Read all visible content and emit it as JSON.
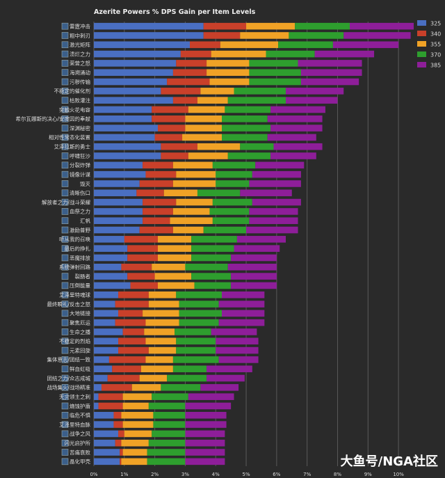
{
  "watermark": "大鱼号/NGA社区",
  "chart_data": {
    "type": "bar",
    "orientation": "horizontal",
    "stacked": true,
    "title": "Azerite Powers % DPS Gain per Item Levels",
    "xlabel": "",
    "ylabel": "",
    "xlim": [
      0,
      10.5
    ],
    "x_ticks": [
      "0%",
      "1%",
      "2%",
      "3%",
      "4%",
      "5%",
      "6%",
      "7%",
      "8%",
      "9%",
      "10%"
    ],
    "grid": true,
    "legend_position": "right",
    "colors": [
      "#4a6fc2",
      "#c9402a",
      "#f0a226",
      "#2e9e2e",
      "#8e1e99"
    ],
    "categories": [
      "雷霆冲击",
      "粗中刺刃",
      "激光矩阵",
      "溃烂之力",
      "荣营之怒",
      "海溯涌动",
      "污秽传输",
      "不稳定的催化剂",
      "枯败灌注",
      "突触火花电容",
      "希尔瓦娜斯的决心/安度因的奉献",
      "深渊秘密",
      "相对性常态化装置",
      "艾泽拉斯的勇士",
      "呼啸狂沙",
      "分裂炸弹",
      "镜像计谋",
      "毁灭",
      "清晰伤口",
      "解放者之力/战斗荣耀",
      "血祭之力",
      "汇帆",
      "激励普野",
      "听从我的召唤",
      "最后的挣扎",
      "恶魔排放",
      "系统弹射回路",
      "裂肠者",
      "压倒能量",
      "艾泽里特魂球",
      "最终瞬礼/反击之怒",
      "大地链接",
      "聚焦厄运",
      "生命之播",
      "不稳定的烈焰",
      "元素回旋",
      "集体意志/团结一致",
      "鲜血虹吸",
      "团结之力/众志成城",
      "战场集火/战场精准",
      "天灾领主之刺",
      "熵蚀护盾",
      "临危不惧",
      "艾泽里特血脉",
      "战争之风",
      "闪光启护所",
      "苦痛衰败",
      "晶化甲壳"
    ],
    "series": [
      {
        "name": "325",
        "values": [
          3.6,
          3.6,
          3.15,
          2.85,
          2.7,
          2.6,
          2.4,
          2.2,
          2.6,
          1.9,
          1.9,
          2.1,
          2.0,
          2.2,
          2.2,
          1.6,
          1.7,
          1.5,
          1.4,
          1.6,
          1.6,
          1.6,
          1.5,
          1.0,
          1.1,
          1.1,
          0.9,
          1.1,
          1.2,
          0.8,
          0.7,
          0.8,
          0.7,
          0.95,
          0.8,
          0.8,
          0.5,
          0.6,
          0.45,
          0.25,
          0.15,
          0.15,
          0.65,
          0.65,
          0.8,
          0.7,
          0.85,
          0.85
        ]
      },
      {
        "name": "340",
        "values": [
          1.4,
          1.2,
          1.0,
          1.0,
          1.0,
          1.1,
          1.4,
          1.3,
          0.8,
          1.2,
          1.1,
          0.9,
          0.9,
          1.2,
          0.9,
          1.0,
          1.0,
          1.1,
          0.9,
          1.1,
          1.0,
          0.9,
          1.1,
          1.1,
          1.0,
          1.0,
          1.0,
          0.9,
          0.9,
          1.0,
          1.1,
          0.8,
          1.0,
          0.7,
          0.9,
          1.0,
          1.2,
          0.95,
          1.05,
          1.0,
          0.8,
          0.8,
          0.25,
          0.3,
          0.2,
          0.2,
          0.1,
          0.05
        ]
      },
      {
        "name": "355",
        "values": [
          1.6,
          1.6,
          1.9,
          1.8,
          1.4,
          1.4,
          1.3,
          1.1,
          1.0,
          1.2,
          1.2,
          1.2,
          1.3,
          1.4,
          1.3,
          1.3,
          1.3,
          1.4,
          1.1,
          1.2,
          1.2,
          1.4,
          1.0,
          1.1,
          1.1,
          1.1,
          1.1,
          1.2,
          1.2,
          0.9,
          1.0,
          1.2,
          1.1,
          1.0,
          1.0,
          0.9,
          0.9,
          1.05,
          0.9,
          0.95,
          0.95,
          0.85,
          1.05,
          1.0,
          0.9,
          0.9,
          0.8,
          0.85
        ]
      },
      {
        "name": "370",
        "values": [
          1.8,
          1.8,
          1.8,
          1.6,
          1.6,
          1.7,
          1.7,
          1.7,
          1.9,
          1.5,
          1.5,
          1.6,
          1.5,
          1.1,
          1.4,
          1.4,
          1.2,
          1.1,
          1.4,
          1.3,
          1.3,
          1.2,
          1.4,
          1.5,
          1.4,
          1.3,
          1.4,
          1.3,
          1.2,
          1.5,
          1.3,
          1.4,
          1.3,
          1.2,
          1.3,
          1.3,
          1.5,
          1.1,
          1.3,
          1.3,
          1.2,
          1.2,
          1.05,
          1.05,
          1.1,
          1.2,
          1.25,
          1.25
        ]
      },
      {
        "name": "385",
        "values": [
          2.1,
          2.2,
          2.15,
          1.95,
          2.1,
          2.0,
          1.9,
          1.9,
          1.7,
          1.8,
          1.8,
          1.7,
          1.6,
          1.6,
          1.5,
          1.6,
          1.6,
          1.7,
          1.7,
          1.6,
          1.6,
          1.6,
          1.7,
          1.6,
          1.5,
          1.5,
          1.6,
          1.5,
          1.5,
          1.4,
          1.5,
          1.4,
          1.5,
          1.5,
          1.4,
          1.4,
          1.3,
          1.5,
          1.25,
          1.25,
          1.5,
          1.5,
          1.35,
          1.35,
          1.3,
          1.3,
          1.3,
          1.3
        ]
      }
    ]
  }
}
